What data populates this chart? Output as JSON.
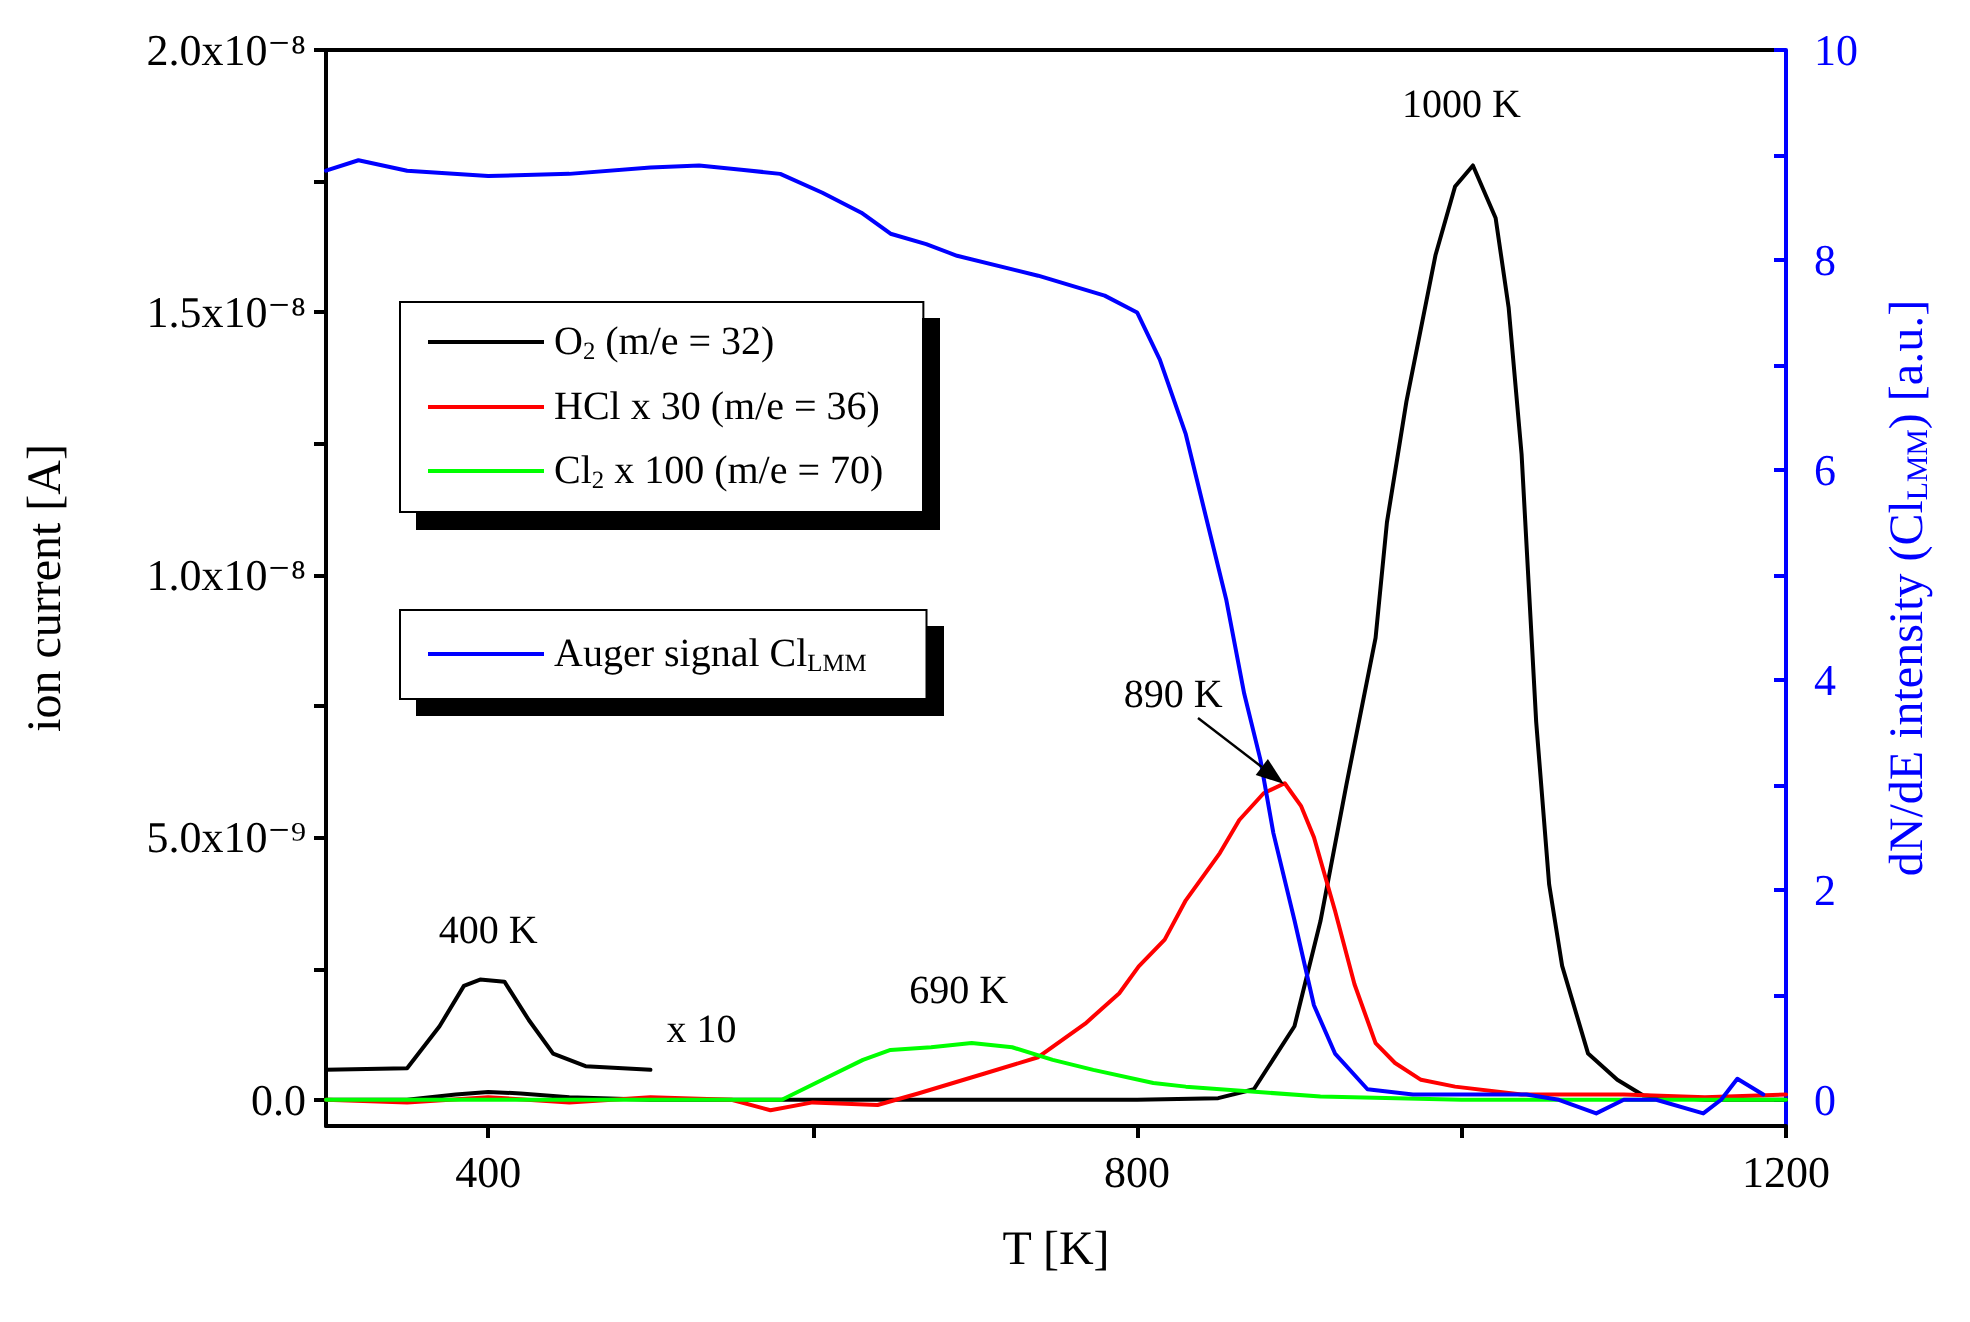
{
  "chart_data": {
    "type": "line",
    "xlabel": "T [K]",
    "ylabel": "ion current [A]",
    "y2label": "dN/dE intensity (Cl$_{LMM}$) [a.u.]",
    "xlim": [
      300,
      1200
    ],
    "xticks": [
      400,
      {
        "value": 600,
        "label": null
      },
      800,
      {
        "value": 1000,
        "label": null
      },
      1200
    ],
    "ylim": [
      -5e-10,
      2e-08
    ],
    "yticks": [
      {
        "value": 0,
        "label": "0.0"
      },
      {
        "value": 2.5e-09,
        "label": null
      },
      {
        "value": 5e-09,
        "label": "5.0x10⁻⁹"
      },
      {
        "value": 7.5e-09,
        "label": null
      },
      {
        "value": 1e-08,
        "label": "1.0x10⁻⁸"
      },
      {
        "value": 1.25e-08,
        "label": null
      },
      {
        "value": 1.5e-08,
        "label": "1.5x10⁻⁸"
      },
      {
        "value": 1.75e-08,
        "label": null
      },
      {
        "value": 2e-08,
        "label": "2.0x10⁻⁸"
      }
    ],
    "y2lim": [
      -0.25,
      10
    ],
    "y2ticks": [
      0,
      {
        "value": 1,
        "label": null
      },
      2,
      {
        "value": 3,
        "label": null
      },
      4,
      {
        "value": 5,
        "label": null
      },
      6,
      {
        "value": 7,
        "label": null
      },
      8,
      {
        "value": 9,
        "label": null
      },
      10
    ],
    "legend": "top left",
    "marker": "none",
    "line_style": "solid",
    "grid": false,
    "series": [
      {
        "name": "O$_{2}$ (m/e = 32)",
        "color": "#000000",
        "x": [
          300,
          350,
          380,
          400,
          420,
          450,
          500,
          600,
          700,
          800,
          850,
          872,
          897,
          913,
          929,
          947,
          954,
          966,
          984,
          996,
          1007,
          1021,
          1029,
          1037,
          1046,
          1054,
          1062,
          1078,
          1096,
          1112,
          1150,
          1200
        ],
        "values": [
          0,
          0,
          1e-10,
          1.5e-10,
          1.2e-10,
          5e-11,
          0,
          0,
          0,
          0,
          3e-11,
          2e-10,
          1.4e-09,
          3.4e-09,
          6e-09,
          8.8e-09,
          1.1e-08,
          1.33e-08,
          1.61e-08,
          1.74e-08,
          1.78e-08,
          1.68e-08,
          1.51e-08,
          1.23e-08,
          7.2e-09,
          4.1e-09,
          2.55e-09,
          8.8e-10,
          3.8e-10,
          8e-11,
          0,
          0
        ]
      },
      {
        "name": "HCl x 30 (m/e = 36)",
        "color": "#ff0000",
        "x": [
          300,
          350,
          400,
          450,
          500,
          550,
          574,
          600,
          640,
          665,
          706,
          739,
          768,
          789,
          801,
          817,
          830,
          851,
          863,
          878,
          891,
          901,
          909,
          922,
          934,
          947,
          959,
          975,
          996,
          1037,
          1100,
          1150,
          1200
        ],
        "values": [
          0,
          -5e-11,
          5e-11,
          -5e-11,
          5e-11,
          0,
          -2e-10,
          -5e-11,
          -1e-10,
          1.2e-10,
          5e-10,
          8.1e-10,
          1.45e-09,
          2.03e-09,
          2.54e-09,
          3.05e-09,
          3.8e-09,
          4.7e-09,
          5.33e-09,
          5.84e-09,
          6.03e-09,
          5.6e-09,
          5e-09,
          3.6e-09,
          2.2e-09,
          1.08e-09,
          7e-10,
          3.8e-10,
          2.5e-10,
          1e-10,
          1e-10,
          5e-11,
          1e-10
        ]
      },
      {
        "name": "Cl$_{2}$ x 100 (m/e = 70)",
        "color": "#00ff00",
        "x": [
          300,
          400,
          500,
          581,
          606,
          631,
          648,
          673,
          698,
          723,
          748,
          773,
          810,
          830,
          913,
          1000,
          1100,
          1200
        ],
        "values": [
          0,
          0,
          0,
          0,
          3.8e-10,
          7.6e-10,
          9.5e-10,
          1e-09,
          1.08e-09,
          1e-09,
          7.6e-10,
          5.7e-10,
          3.2e-10,
          2.5e-10,
          6e-11,
          0,
          0,
          0
        ]
      },
      {
        "color": "#000000",
        "x": [
          300,
          350,
          370,
          385,
          395,
          410,
          425,
          440,
          460,
          500
        ],
        "values": [
          5.7e-10,
          6e-10,
          1.4e-09,
          2.17e-09,
          2.29e-09,
          2.25e-09,
          1.52e-09,
          8.8e-10,
          6.4e-10,
          5.7e-10
        ]
      },
      {
        "name": "Auger signal Cl$_{LMM}$",
        "color": "#0000ff",
        "axis": "y2",
        "x": [
          300,
          320,
          350,
          400,
          450,
          500,
          530,
          556,
          580,
          606,
          630,
          648,
          670,
          689,
          739,
          780,
          800,
          814,
          830,
          842,
          855,
          866,
          876,
          884,
          897,
          909,
          922,
          942,
          970,
          996,
          1040,
          1060,
          1083,
          1100,
          1120,
          1149,
          1160,
          1170,
          1186
        ],
        "values": [
          8.85,
          8.95,
          8.85,
          8.8,
          8.82,
          8.88,
          8.9,
          8.86,
          8.82,
          8.64,
          8.45,
          8.25,
          8.15,
          8.04,
          7.85,
          7.66,
          7.5,
          7.05,
          6.34,
          5.58,
          4.76,
          3.87,
          3.24,
          2.54,
          1.71,
          0.9,
          0.44,
          0.1,
          0.05,
          0.05,
          0.05,
          0,
          -0.13,
          0,
          0,
          -0.13,
          0,
          0.2,
          0.05
        ]
      }
    ],
    "annotations": [
      {
        "text": "1000 K",
        "x": 1000,
        "y": 1.78e-08
      },
      {
        "text": "890 K",
        "x": 890,
        "y": 6e-09
      },
      {
        "text": "400 K",
        "x": 400,
        "y": 2.3e-09
      },
      {
        "text": "x 10",
        "x": 500,
        "y": 5.7e-10
      },
      {
        "text": "690 K",
        "x": 690,
        "y": 1.08e-09
      }
    ]
  }
}
